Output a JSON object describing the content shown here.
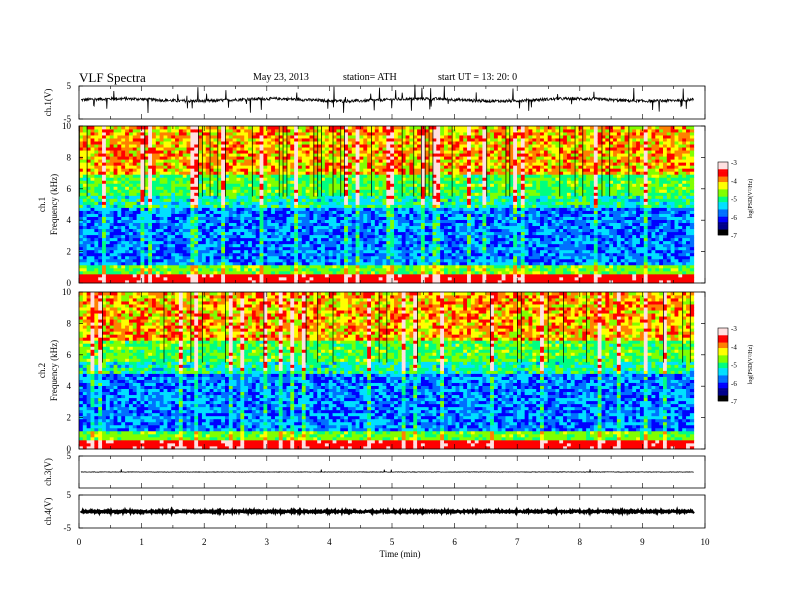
{
  "header": {
    "title": "VLF  Spectra",
    "date": "May 23, 2013",
    "station": "station= ATH",
    "start": "start  UT  =   13: 20: 0"
  },
  "chart_data": [
    {
      "type": "line",
      "ylabel": "ch.1(V)",
      "ylim": [
        -5,
        5
      ],
      "yticks": [
        "5",
        "-5"
      ],
      "description_values": {
        "baseline_V": 0.8
      },
      "color": "#000000"
    },
    {
      "type": "heatmap",
      "ylabel": "ch.1\nFrequency  (kHz)",
      "ylim": [
        0,
        10
      ],
      "yticks": [
        "0",
        "2",
        "4",
        "6",
        "8",
        "10"
      ],
      "colorbar": {
        "label": "log(PSD(V²/Hz)",
        "range": [
          -7,
          -3
        ],
        "ticks": [
          "-3",
          "-4",
          "-5",
          "-6",
          "-7"
        ]
      }
    },
    {
      "type": "heatmap",
      "ylabel": "ch.2\nFrequency  (kHz)",
      "ylim": [
        0,
        10
      ],
      "yticks": [
        "0",
        "2",
        "4",
        "6",
        "8",
        "10"
      ],
      "colorbar": {
        "label": "log(PSD(V²/Hz)",
        "range": [
          -7,
          -3
        ],
        "ticks": [
          "-3",
          "-4",
          "-5",
          "-6",
          "-7"
        ]
      }
    },
    {
      "type": "line",
      "ylabel": "ch.3(V)",
      "ylim": [
        -5,
        5
      ],
      "yticks": [
        "5"
      ],
      "description_values": {
        "baseline_V": 0
      }
    },
    {
      "type": "line",
      "ylabel": "ch.4(V)",
      "ylim": [
        -5,
        5
      ],
      "yticks": [
        "5",
        "-5"
      ],
      "description_values": {
        "baseline_V": 0
      }
    }
  ],
  "x_axis": {
    "label": "Time  (min)",
    "range": [
      0,
      10
    ],
    "ticks": [
      "0",
      "1",
      "2",
      "3",
      "4",
      "5",
      "6",
      "7",
      "8",
      "9",
      "10"
    ],
    "data_end_min": 9.82
  },
  "colormap": [
    "#000000",
    "#00008b",
    "#0000ff",
    "#0070ff",
    "#00e0ff",
    "#00ff80",
    "#80ff00",
    "#ffff00",
    "#ff8000",
    "#ff0000",
    "#ffe0e0"
  ]
}
